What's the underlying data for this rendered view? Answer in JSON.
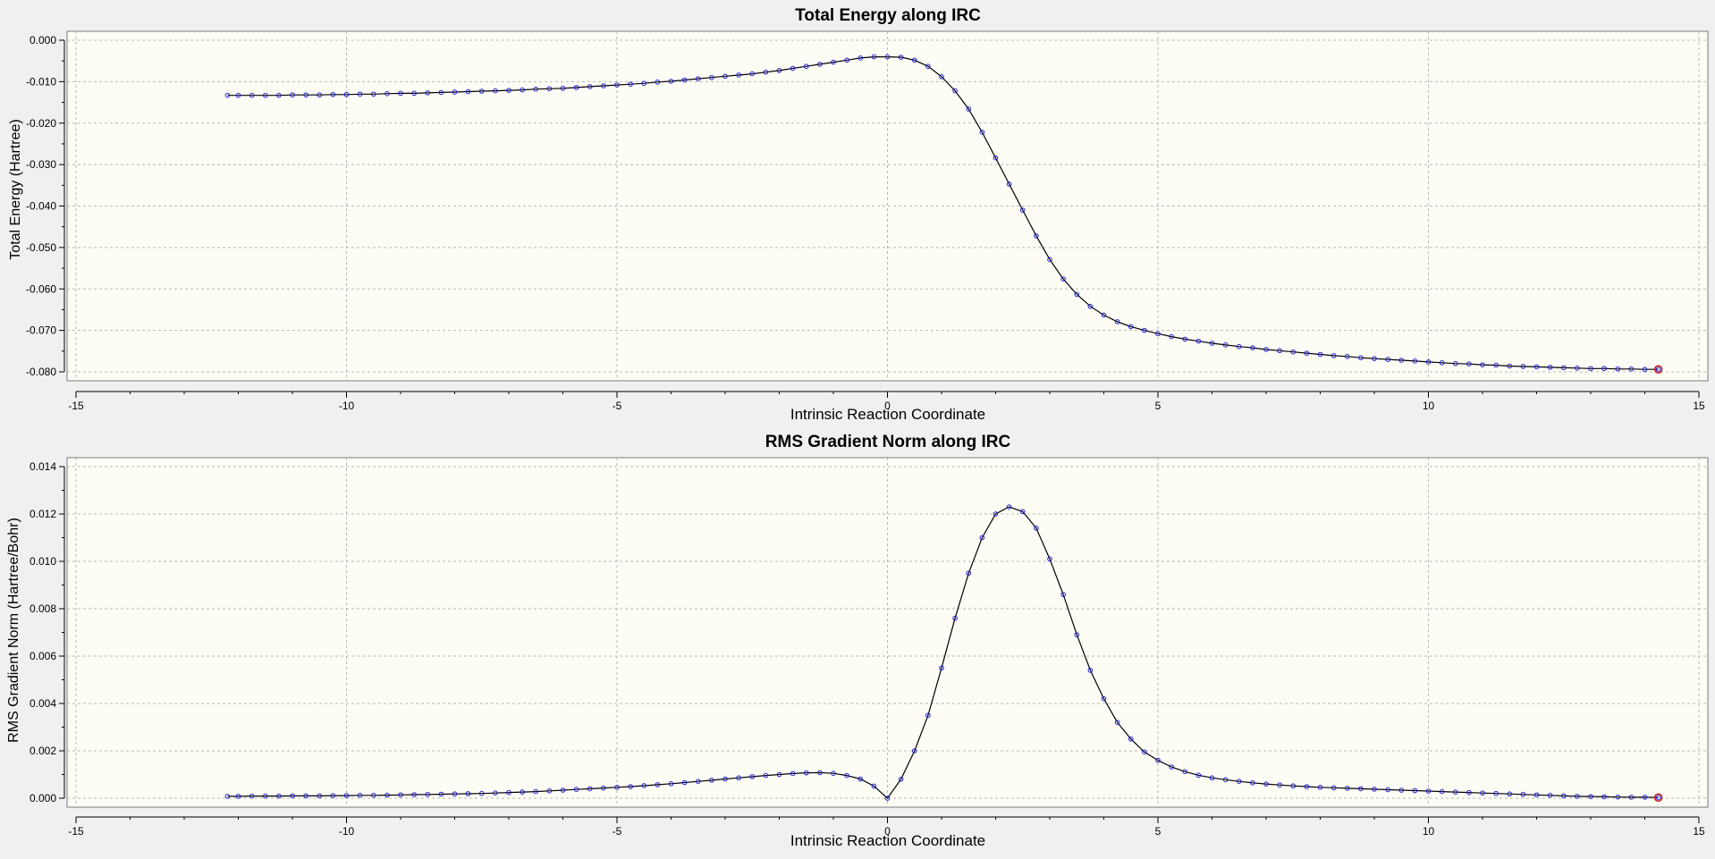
{
  "colors": {
    "background": "#f0f0f0",
    "plot_area": "#fdfdf6",
    "line": "#000000",
    "marker": "#1f1fd6",
    "highlight": "#d01010",
    "grid": "#b8b8b8"
  },
  "chart_data": [
    {
      "type": "line",
      "title": "Total Energy along IRC",
      "xlabel": "Intrinsic Reaction Coordinate",
      "ylabel": "Total Energy (Hartree)",
      "xlim": [
        -15,
        15
      ],
      "ylim": [
        -0.08,
        0.0
      ],
      "xticks": [
        -15,
        -10,
        -5,
        0,
        5,
        10,
        15
      ],
      "xtick_labels": [
        "-15",
        "-10",
        "-5",
        "0",
        "5",
        "10",
        "15"
      ],
      "yticks": [
        0.0,
        -0.01,
        -0.02,
        -0.03,
        -0.04,
        -0.05,
        -0.06,
        -0.07,
        -0.08
      ],
      "ytick_labels": [
        "0.000",
        "-0.010",
        "-0.020",
        "-0.030",
        "-0.040",
        "-0.050",
        "-0.060",
        "-0.070",
        "-0.080"
      ],
      "grid": true,
      "legend": "none",
      "highlighted_point": "last",
      "series": [
        {
          "x": [
            -12.2,
            -12.0,
            -11.75,
            -11.5,
            -11.25,
            -11.0,
            -10.75,
            -10.5,
            -10.25,
            -10.0,
            -9.75,
            -9.5,
            -9.25,
            -9.0,
            -8.75,
            -8.5,
            -8.25,
            -8.0,
            -7.75,
            -7.5,
            -7.25,
            -7.0,
            -6.75,
            -6.5,
            -6.25,
            -6.0,
            -5.75,
            -5.5,
            -5.25,
            -5.0,
            -4.75,
            -4.5,
            -4.25,
            -4.0,
            -3.75,
            -3.5,
            -3.25,
            -3.0,
            -2.75,
            -2.5,
            -2.25,
            -2.0,
            -1.75,
            -1.5,
            -1.25,
            -1.0,
            -0.75,
            -0.5,
            -0.25,
            0.0,
            0.25,
            0.5,
            0.75,
            1.0,
            1.25,
            1.5,
            1.75,
            2.0,
            2.25,
            2.5,
            2.75,
            3.0,
            3.25,
            3.5,
            3.75,
            4.0,
            4.25,
            4.5,
            4.75,
            5.0,
            5.25,
            5.5,
            5.75,
            6.0,
            6.25,
            6.5,
            6.75,
            7.0,
            7.25,
            7.5,
            7.75,
            8.0,
            8.25,
            8.5,
            8.75,
            9.0,
            9.25,
            9.5,
            9.75,
            10.0,
            10.25,
            10.5,
            10.75,
            11.0,
            11.25,
            11.5,
            11.75,
            12.0,
            12.25,
            12.5,
            12.75,
            13.0,
            13.25,
            13.5,
            13.75,
            14.0,
            14.25
          ],
          "y": [
            -0.0133,
            -0.0133,
            -0.0133,
            -0.0133,
            -0.0133,
            -0.0132,
            -0.0132,
            -0.0132,
            -0.0131,
            -0.0131,
            -0.013,
            -0.013,
            -0.0129,
            -0.0128,
            -0.0128,
            -0.0127,
            -0.0126,
            -0.0125,
            -0.0124,
            -0.0123,
            -0.0122,
            -0.0121,
            -0.012,
            -0.0118,
            -0.0117,
            -0.0116,
            -0.0114,
            -0.0112,
            -0.011,
            -0.0108,
            -0.0106,
            -0.0104,
            -0.0101,
            -0.0099,
            -0.0096,
            -0.0093,
            -0.009,
            -0.0087,
            -0.0084,
            -0.0081,
            -0.0077,
            -0.0073,
            -0.0068,
            -0.0063,
            -0.0058,
            -0.0053,
            -0.0048,
            -0.0043,
            -0.004,
            -0.004,
            -0.0041,
            -0.0048,
            -0.0063,
            -0.0088,
            -0.0122,
            -0.0166,
            -0.0222,
            -0.0284,
            -0.0347,
            -0.041,
            -0.0472,
            -0.0529,
            -0.0576,
            -0.0613,
            -0.0642,
            -0.0663,
            -0.0679,
            -0.0691,
            -0.07,
            -0.0708,
            -0.0715,
            -0.0721,
            -0.0726,
            -0.0731,
            -0.0735,
            -0.0739,
            -0.0742,
            -0.0746,
            -0.0749,
            -0.0752,
            -0.0755,
            -0.0758,
            -0.0761,
            -0.0763,
            -0.0766,
            -0.0768,
            -0.077,
            -0.0772,
            -0.0774,
            -0.0776,
            -0.0778,
            -0.078,
            -0.0781,
            -0.0783,
            -0.0784,
            -0.0786,
            -0.0787,
            -0.0788,
            -0.0789,
            -0.079,
            -0.0791,
            -0.0792,
            -0.0792,
            -0.0793,
            -0.0793,
            -0.0794,
            -0.0794
          ]
        }
      ]
    },
    {
      "type": "line",
      "title": "RMS Gradient Norm along IRC",
      "xlabel": "Intrinsic Reaction Coordinate",
      "ylabel": "RMS Gradient Norm (Hartree/Bohr)",
      "xlim": [
        -15,
        15
      ],
      "ylim": [
        0.0,
        0.014
      ],
      "xticks": [
        -15,
        -10,
        -5,
        0,
        5,
        10,
        15
      ],
      "xtick_labels": [
        "-15",
        "-10",
        "-5",
        "0",
        "5",
        "10",
        "15"
      ],
      "yticks": [
        0.014,
        0.012,
        0.01,
        0.008,
        0.006,
        0.004,
        0.002,
        0.0
      ],
      "ytick_labels": [
        "0.014",
        "0.012",
        "0.010",
        "0.008",
        "0.006",
        "0.004",
        "0.002",
        "0.000"
      ],
      "grid": true,
      "legend": "none",
      "highlighted_point": "last",
      "series": [
        {
          "x": [
            -12.2,
            -12.0,
            -11.75,
            -11.5,
            -11.25,
            -11.0,
            -10.75,
            -10.5,
            -10.25,
            -10.0,
            -9.75,
            -9.5,
            -9.25,
            -9.0,
            -8.75,
            -8.5,
            -8.25,
            -8.0,
            -7.75,
            -7.5,
            -7.25,
            -7.0,
            -6.75,
            -6.5,
            -6.25,
            -6.0,
            -5.75,
            -5.5,
            -5.25,
            -5.0,
            -4.75,
            -4.5,
            -4.25,
            -4.0,
            -3.75,
            -3.5,
            -3.25,
            -3.0,
            -2.75,
            -2.5,
            -2.25,
            -2.0,
            -1.75,
            -1.5,
            -1.25,
            -1.0,
            -0.75,
            -0.5,
            -0.25,
            0.0,
            0.25,
            0.5,
            0.75,
            1.0,
            1.25,
            1.5,
            1.75,
            2.0,
            2.25,
            2.5,
            2.75,
            3.0,
            3.25,
            3.5,
            3.75,
            4.0,
            4.25,
            4.5,
            4.75,
            5.0,
            5.25,
            5.5,
            5.75,
            6.0,
            6.25,
            6.5,
            6.75,
            7.0,
            7.25,
            7.5,
            7.75,
            8.0,
            8.25,
            8.5,
            8.75,
            9.0,
            9.25,
            9.5,
            9.75,
            10.0,
            10.25,
            10.5,
            10.75,
            11.0,
            11.25,
            11.5,
            11.75,
            12.0,
            12.25,
            12.5,
            12.75,
            13.0,
            13.25,
            13.5,
            13.75,
            14.0,
            14.25
          ],
          "y": [
            8e-05,
            8e-05,
            9e-05,
            9e-05,
            9e-05,
            0.0001,
            0.0001,
            0.0001,
            0.00011,
            0.00011,
            0.00012,
            0.00012,
            0.00013,
            0.00014,
            0.00015,
            0.00016,
            0.00017,
            0.00018,
            0.00019,
            0.0002,
            0.00022,
            0.00024,
            0.00026,
            0.00028,
            0.00031,
            0.00034,
            0.00037,
            0.0004,
            0.00043,
            0.00046,
            0.00049,
            0.00053,
            0.00057,
            0.00061,
            0.00066,
            0.00071,
            0.00076,
            0.00081,
            0.00086,
            0.00091,
            0.00096,
            0.001,
            0.00104,
            0.00107,
            0.00108,
            0.00105,
            0.00096,
            0.00081,
            0.00051,
            0.0,
            0.0008,
            0.002,
            0.0035,
            0.0055,
            0.0076,
            0.0095,
            0.011,
            0.012,
            0.0123,
            0.0121,
            0.0114,
            0.0101,
            0.0086,
            0.0069,
            0.0054,
            0.0042,
            0.0032,
            0.0025,
            0.00195,
            0.0016,
            0.00132,
            0.00112,
            0.00097,
            0.00086,
            0.00078,
            0.00071,
            0.00065,
            0.0006,
            0.00056,
            0.00052,
            0.00049,
            0.00046,
            0.00044,
            0.00042,
            0.0004,
            0.00038,
            0.00036,
            0.00034,
            0.00032,
            0.0003,
            0.00028,
            0.00026,
            0.00024,
            0.00022,
            0.0002,
            0.00018,
            0.00016,
            0.00014,
            0.00012,
            0.0001,
            8e-05,
            7e-05,
            6e-05,
            5e-05,
            4e-05,
            4e-05,
            3e-05
          ]
        }
      ]
    }
  ]
}
